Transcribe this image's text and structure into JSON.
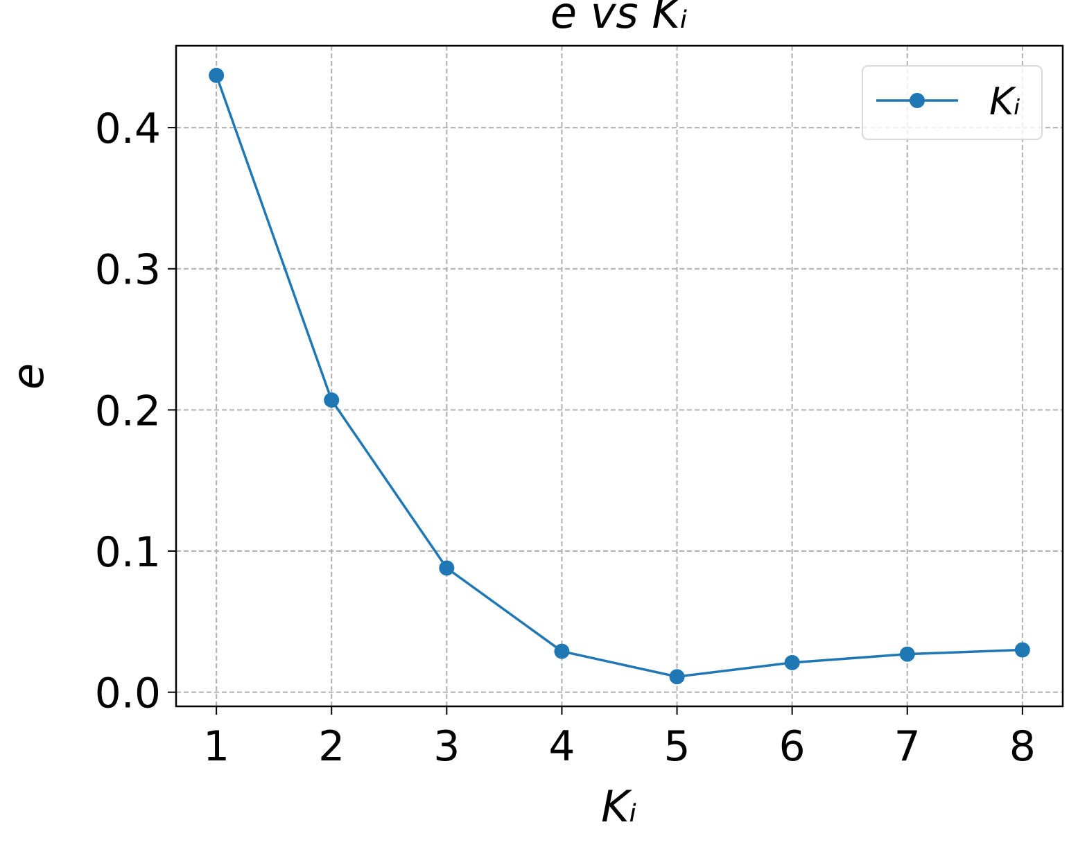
{
  "chart_data": {
    "type": "line",
    "title": "e vs Kᵢ",
    "x_label": "Kᵢ",
    "y_label": "e",
    "x": [
      1,
      2,
      3,
      4,
      5,
      6,
      7,
      8
    ],
    "series": [
      {
        "name": "Kᵢ",
        "color": "#1f77b4",
        "values": [
          0.437,
          0.207,
          0.088,
          0.029,
          0.011,
          0.021,
          0.027,
          0.03
        ]
      }
    ],
    "xlim": [
      0.65,
      8.35
    ],
    "ylim": [
      -0.01,
      0.458
    ],
    "xticks": [
      1,
      2,
      3,
      4,
      5,
      6,
      7,
      8
    ],
    "yticks": [
      {
        "value": 0,
        "label": "0.0"
      },
      0.1,
      0.2,
      0.3,
      0.4
    ],
    "grid": true,
    "legend": "upper right",
    "markers": true
  }
}
